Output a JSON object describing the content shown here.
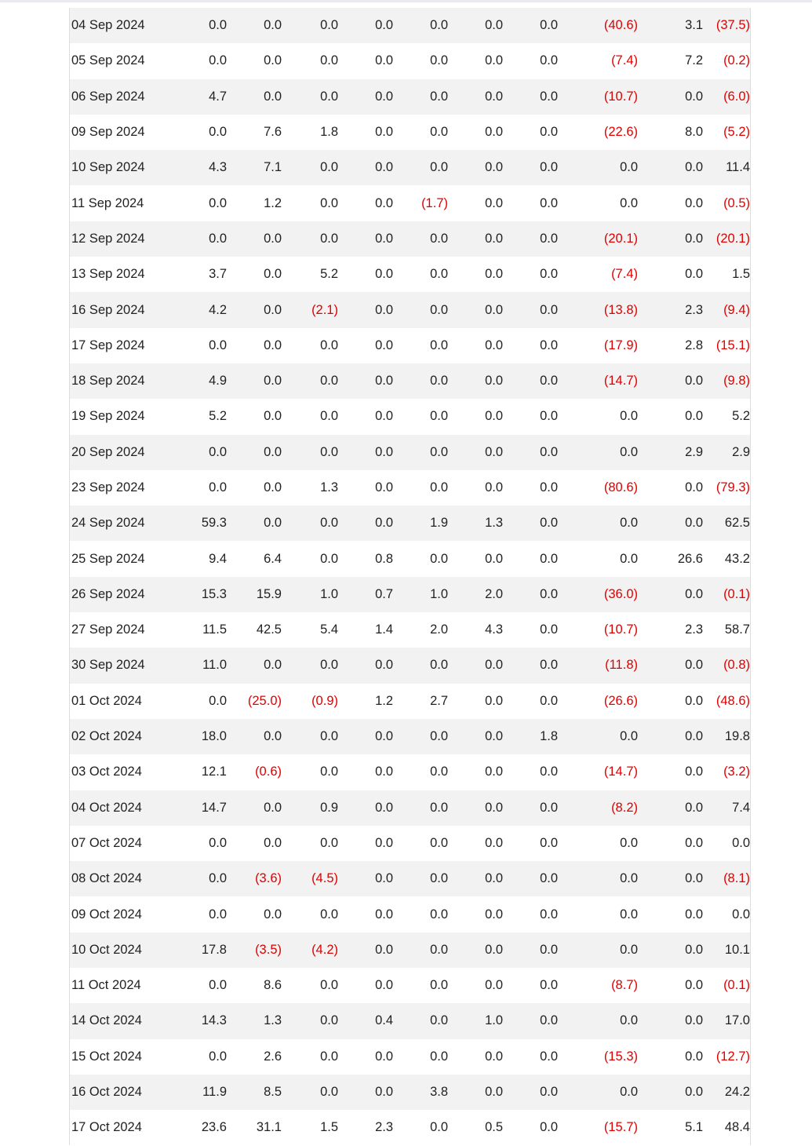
{
  "rows": [
    {
      "date": "04 Sep 2024",
      "values": [
        "0.0",
        "0.0",
        "0.0",
        "0.0",
        "0.0",
        "0.0",
        "0.0",
        "(40.6)",
        "3.1",
        "(37.5)"
      ]
    },
    {
      "date": "05 Sep 2024",
      "values": [
        "0.0",
        "0.0",
        "0.0",
        "0.0",
        "0.0",
        "0.0",
        "0.0",
        "(7.4)",
        "7.2",
        "(0.2)"
      ]
    },
    {
      "date": "06 Sep 2024",
      "values": [
        "4.7",
        "0.0",
        "0.0",
        "0.0",
        "0.0",
        "0.0",
        "0.0",
        "(10.7)",
        "0.0",
        "(6.0)"
      ]
    },
    {
      "date": "09 Sep 2024",
      "values": [
        "0.0",
        "7.6",
        "1.8",
        "0.0",
        "0.0",
        "0.0",
        "0.0",
        "(22.6)",
        "8.0",
        "(5.2)"
      ]
    },
    {
      "date": "10 Sep 2024",
      "values": [
        "4.3",
        "7.1",
        "0.0",
        "0.0",
        "0.0",
        "0.0",
        "0.0",
        "0.0",
        "0.0",
        "11.4"
      ]
    },
    {
      "date": "11 Sep 2024",
      "values": [
        "0.0",
        "1.2",
        "0.0",
        "0.0",
        "(1.7)",
        "0.0",
        "0.0",
        "0.0",
        "0.0",
        "(0.5)"
      ]
    },
    {
      "date": "12 Sep 2024",
      "values": [
        "0.0",
        "0.0",
        "0.0",
        "0.0",
        "0.0",
        "0.0",
        "0.0",
        "(20.1)",
        "0.0",
        "(20.1)"
      ]
    },
    {
      "date": "13 Sep 2024",
      "values": [
        "3.7",
        "0.0",
        "5.2",
        "0.0",
        "0.0",
        "0.0",
        "0.0",
        "(7.4)",
        "0.0",
        "1.5"
      ]
    },
    {
      "date": "16 Sep 2024",
      "values": [
        "4.2",
        "0.0",
        "(2.1)",
        "0.0",
        "0.0",
        "0.0",
        "0.0",
        "(13.8)",
        "2.3",
        "(9.4)"
      ]
    },
    {
      "date": "17 Sep 2024",
      "values": [
        "0.0",
        "0.0",
        "0.0",
        "0.0",
        "0.0",
        "0.0",
        "0.0",
        "(17.9)",
        "2.8",
        "(15.1)"
      ]
    },
    {
      "date": "18 Sep 2024",
      "values": [
        "4.9",
        "0.0",
        "0.0",
        "0.0",
        "0.0",
        "0.0",
        "0.0",
        "(14.7)",
        "0.0",
        "(9.8)"
      ]
    },
    {
      "date": "19 Sep 2024",
      "values": [
        "5.2",
        "0.0",
        "0.0",
        "0.0",
        "0.0",
        "0.0",
        "0.0",
        "0.0",
        "0.0",
        "5.2"
      ]
    },
    {
      "date": "20 Sep 2024",
      "values": [
        "0.0",
        "0.0",
        "0.0",
        "0.0",
        "0.0",
        "0.0",
        "0.0",
        "0.0",
        "2.9",
        "2.9"
      ]
    },
    {
      "date": "23 Sep 2024",
      "values": [
        "0.0",
        "0.0",
        "1.3",
        "0.0",
        "0.0",
        "0.0",
        "0.0",
        "(80.6)",
        "0.0",
        "(79.3)"
      ]
    },
    {
      "date": "24 Sep 2024",
      "values": [
        "59.3",
        "0.0",
        "0.0",
        "0.0",
        "1.9",
        "1.3",
        "0.0",
        "0.0",
        "0.0",
        "62.5"
      ]
    },
    {
      "date": "25 Sep 2024",
      "values": [
        "9.4",
        "6.4",
        "0.0",
        "0.8",
        "0.0",
        "0.0",
        "0.0",
        "0.0",
        "26.6",
        "43.2"
      ]
    },
    {
      "date": "26 Sep 2024",
      "values": [
        "15.3",
        "15.9",
        "1.0",
        "0.7",
        "1.0",
        "2.0",
        "0.0",
        "(36.0)",
        "0.0",
        "(0.1)"
      ]
    },
    {
      "date": "27 Sep 2024",
      "values": [
        "11.5",
        "42.5",
        "5.4",
        "1.4",
        "2.0",
        "4.3",
        "0.0",
        "(10.7)",
        "2.3",
        "58.7"
      ]
    },
    {
      "date": "30 Sep 2024",
      "values": [
        "11.0",
        "0.0",
        "0.0",
        "0.0",
        "0.0",
        "0.0",
        "0.0",
        "(11.8)",
        "0.0",
        "(0.8)"
      ]
    },
    {
      "date": "01 Oct 2024",
      "values": [
        "0.0",
        "(25.0)",
        "(0.9)",
        "1.2",
        "2.7",
        "0.0",
        "0.0",
        "(26.6)",
        "0.0",
        "(48.6)"
      ]
    },
    {
      "date": "02 Oct 2024",
      "values": [
        "18.0",
        "0.0",
        "0.0",
        "0.0",
        "0.0",
        "0.0",
        "1.8",
        "0.0",
        "0.0",
        "19.8"
      ]
    },
    {
      "date": "03 Oct 2024",
      "values": [
        "12.1",
        "(0.6)",
        "0.0",
        "0.0",
        "0.0",
        "0.0",
        "0.0",
        "(14.7)",
        "0.0",
        "(3.2)"
      ]
    },
    {
      "date": "04 Oct 2024",
      "values": [
        "14.7",
        "0.0",
        "0.9",
        "0.0",
        "0.0",
        "0.0",
        "0.0",
        "(8.2)",
        "0.0",
        "7.4"
      ]
    },
    {
      "date": "07 Oct 2024",
      "values": [
        "0.0",
        "0.0",
        "0.0",
        "0.0",
        "0.0",
        "0.0",
        "0.0",
        "0.0",
        "0.0",
        "0.0"
      ]
    },
    {
      "date": "08 Oct 2024",
      "values": [
        "0.0",
        "(3.6)",
        "(4.5)",
        "0.0",
        "0.0",
        "0.0",
        "0.0",
        "0.0",
        "0.0",
        "(8.1)"
      ]
    },
    {
      "date": "09 Oct 2024",
      "values": [
        "0.0",
        "0.0",
        "0.0",
        "0.0",
        "0.0",
        "0.0",
        "0.0",
        "0.0",
        "0.0",
        "0.0"
      ]
    },
    {
      "date": "10 Oct 2024",
      "values": [
        "17.8",
        "(3.5)",
        "(4.2)",
        "0.0",
        "0.0",
        "0.0",
        "0.0",
        "0.0",
        "0.0",
        "10.1"
      ]
    },
    {
      "date": "11 Oct 2024",
      "values": [
        "0.0",
        "8.6",
        "0.0",
        "0.0",
        "0.0",
        "0.0",
        "0.0",
        "(8.7)",
        "0.0",
        "(0.1)"
      ]
    },
    {
      "date": "14 Oct 2024",
      "values": [
        "14.3",
        "1.3",
        "0.0",
        "0.4",
        "0.0",
        "1.0",
        "0.0",
        "0.0",
        "0.0",
        "17.0"
      ]
    },
    {
      "date": "15 Oct 2024",
      "values": [
        "0.0",
        "2.6",
        "0.0",
        "0.0",
        "0.0",
        "0.0",
        "0.0",
        "(15.3)",
        "0.0",
        "(12.7)"
      ]
    },
    {
      "date": "16 Oct 2024",
      "values": [
        "11.9",
        "8.5",
        "0.0",
        "0.0",
        "3.8",
        "0.0",
        "0.0",
        "0.0",
        "0.0",
        "24.2"
      ]
    },
    {
      "date": "17 Oct 2024",
      "values": [
        "23.6",
        "31.1",
        "1.5",
        "2.3",
        "0.0",
        "0.5",
        "0.0",
        "(15.7)",
        "5.1",
        "48.4"
      ]
    }
  ],
  "colors": {
    "negative": "#e00000",
    "stripe": "#f2f2f2",
    "text": "#222222"
  }
}
